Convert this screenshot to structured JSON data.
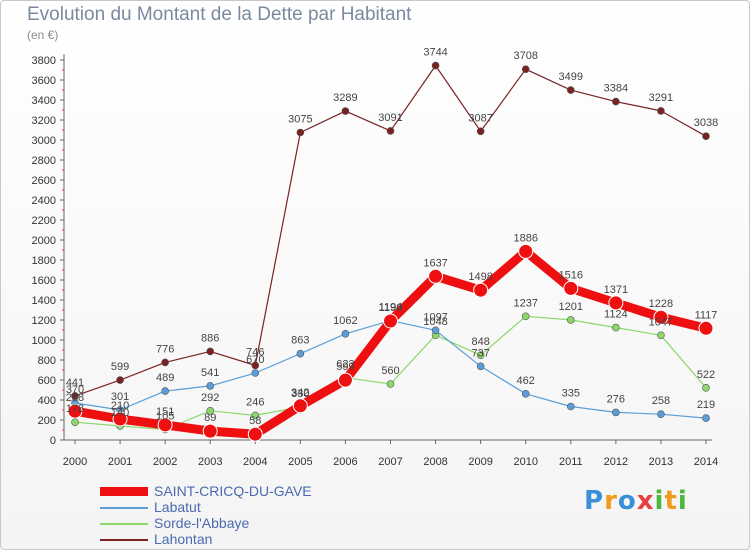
{
  "title": "Evolution du Montant de la Dette par Habitant",
  "unit": "(en €)",
  "logo": {
    "text": "Proxiti",
    "letter_colors": [
      "#3a8fd8",
      "#f29a1e",
      "#3a8fd8",
      "#e84040",
      "#4ab83c",
      "#f29a1e",
      "#4ab83c"
    ]
  },
  "chart_data": {
    "type": "line",
    "x": [
      "2000",
      "2001",
      "2002",
      "2003",
      "2004",
      "2005",
      "2006",
      "2007",
      "2008",
      "2009",
      "2010",
      "2011",
      "2012",
      "2013",
      "2014"
    ],
    "ylim": [
      0,
      3800
    ],
    "yticks": [
      0,
      200,
      400,
      600,
      800,
      1000,
      1200,
      1400,
      1600,
      1800,
      2000,
      2200,
      2400,
      2600,
      2800,
      3000,
      3200,
      3400,
      3600,
      3800
    ],
    "grid": false,
    "legend_position": "bottom-left",
    "series": [
      {
        "name": "SAINT-CRICQ-DU-GAVE",
        "color": "#ee1010",
        "width": 9,
        "marker": 7,
        "values": [
          288,
          210,
          151,
          89,
          58,
          342,
          599,
          1190,
          1637,
          1498,
          1886,
          1516,
          1371,
          1228,
          1117
        ],
        "labels": [
          "288",
          "210",
          "151",
          "89",
          "58",
          "342",
          "599",
          "1190",
          "1637",
          "1498",
          "1886",
          "1516",
          "1371",
          "1228",
          "1117"
        ]
      },
      {
        "name": "Labatut",
        "color": "#5a9ed8",
        "width": 1.2,
        "marker": 3.5,
        "values": [
          370,
          301,
          489,
          541,
          670,
          863,
          1062,
          1194,
          1097,
          737,
          462,
          335,
          276,
          258,
          219
        ],
        "labels": [
          "370",
          "301",
          "489",
          "541",
          "670",
          "863",
          "1062",
          "1194",
          "1097",
          "737",
          "462",
          "335",
          "276",
          "258",
          "219"
        ]
      },
      {
        "name": "Sorde-l'Abbaye",
        "color": "#8cd86a",
        "width": 1.2,
        "marker": 3.5,
        "values": [
          178,
          140,
          105,
          292,
          246,
          330,
          623,
          560,
          1048,
          848,
          1237,
          1201,
          1124,
          1047,
          522
        ],
        "labels": [
          "178",
          "140",
          "105",
          "292",
          "246",
          "330",
          "623",
          "560",
          "1048",
          "848",
          "1237",
          "1201",
          "1124",
          "1047",
          "522"
        ]
      },
      {
        "name": "Lahontan",
        "color": "#7a2222",
        "width": 1.2,
        "marker": 3.5,
        "values": [
          441,
          599,
          776,
          886,
          746,
          3075,
          3289,
          3091,
          3744,
          3087,
          3708,
          3499,
          3384,
          3291,
          3038
        ],
        "labels": [
          "441",
          "599",
          "776",
          "886",
          "746",
          "3075",
          "3289",
          "3091",
          "3744",
          "3087",
          "3708",
          "3499",
          "3384",
          "3291",
          "3038"
        ]
      }
    ]
  }
}
